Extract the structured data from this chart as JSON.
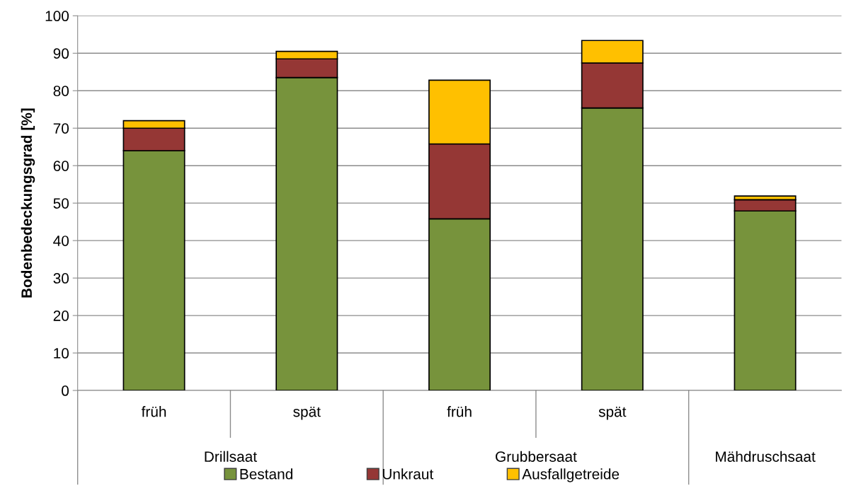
{
  "chart_data": {
    "type": "bar",
    "stacked": true,
    "ylabel": "Bodenbedeckungsgrad [%]",
    "categories": [
      "früh",
      "spät",
      "früh",
      "spät",
      null
    ],
    "annotations": [
      "Drillsaat",
      "Grubbersaat",
      "Mähdruschsaat"
    ],
    "series": [
      {
        "name": "Bestand",
        "color": "#77933c",
        "values": [
          64,
          83.5,
          45.8,
          75.4,
          47.9
        ]
      },
      {
        "name": "Unkraut",
        "color": "#953735",
        "values": [
          6,
          5,
          20,
          12,
          3
        ]
      },
      {
        "name": "Ausfallgetreide",
        "color": "#ffc000",
        "values": [
          2,
          2,
          17,
          6,
          1
        ]
      }
    ],
    "ylim": [
      0,
      100
    ],
    "yticks": [
      0,
      10,
      20,
      30,
      40,
      50,
      60,
      70,
      80,
      90,
      100
    ],
    "grid": "y",
    "legend": "bottom"
  }
}
